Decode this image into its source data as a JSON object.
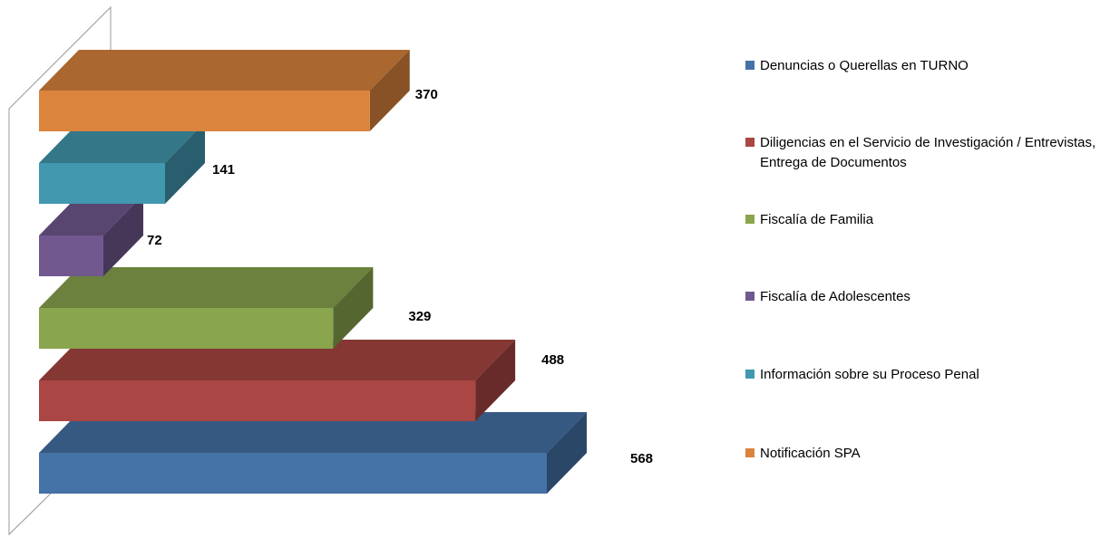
{
  "chart_data": {
    "type": "bar3d_horizontal",
    "series": [
      {
        "name": "Denuncias o Querellas en TURNO",
        "color": "#4572a7",
        "values": [
          568
        ]
      },
      {
        "name": "Diligencias en el Servicio de Investigación / Entrevistas, Entrega de Documentos",
        "color": "#aa4643",
        "values": [
          488
        ]
      },
      {
        "name": "Fiscalía de Familia",
        "color": "#89a54e",
        "values": [
          329
        ]
      },
      {
        "name": "Fiscalía de Adolescentes",
        "color": "#71588f",
        "values": [
          72
        ]
      },
      {
        "name": "Información sobre su Proceso Penal",
        "color": "#4198af",
        "values": [
          141
        ]
      },
      {
        "name": "Notificación SPA",
        "color": "#db843d",
        "values": [
          370
        ]
      }
    ]
  }
}
